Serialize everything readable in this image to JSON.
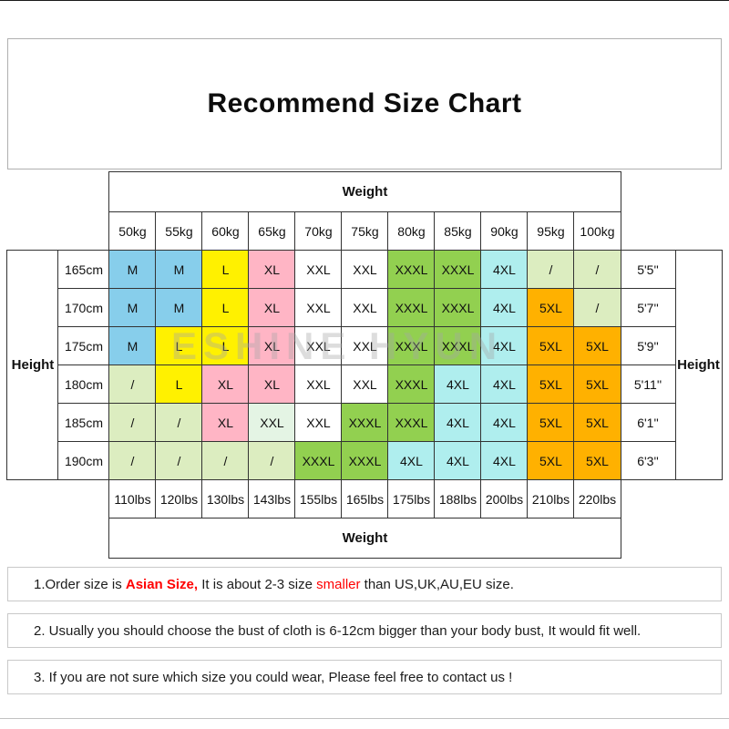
{
  "title": "Recommend Size Chart",
  "watermark": "ESHINE HYUN",
  "chart_data": {
    "type": "table",
    "title": "Recommend Size Chart",
    "weight_label": "Weight",
    "height_label": "Height",
    "columns_kg": [
      "50kg",
      "55kg",
      "60kg",
      "65kg",
      "70kg",
      "75kg",
      "80kg",
      "85kg",
      "90kg",
      "95kg",
      "100kg"
    ],
    "columns_lbs": [
      "110lbs",
      "120lbs",
      "130lbs",
      "143lbs",
      "155lbs",
      "165lbs",
      "175lbs",
      "188lbs",
      "200lbs",
      "210lbs",
      "220lbs"
    ],
    "cell_colors": {
      "blue": "#87CEEB",
      "yellow": "#FFF100",
      "pink": "#FFB5C5",
      "white": "#FFFFFF",
      "green": "#92D050",
      "cyan": "#AFEEEE",
      "orange": "#FFB100",
      "palegreen": "#DCEDC0",
      "mint": "#E4F4E4"
    },
    "rows": [
      {
        "height_cm": "165cm",
        "height_ft": "5'5''",
        "cells": [
          {
            "label": "M",
            "color": "blue"
          },
          {
            "label": "M",
            "color": "blue"
          },
          {
            "label": "L",
            "color": "yellow"
          },
          {
            "label": "XL",
            "color": "pink"
          },
          {
            "label": "XXL",
            "color": "white"
          },
          {
            "label": "XXL",
            "color": "white"
          },
          {
            "label": "XXXL",
            "color": "green"
          },
          {
            "label": "XXXL",
            "color": "green"
          },
          {
            "label": "4XL",
            "color": "cyan"
          },
          {
            "label": "/",
            "color": "palegreen"
          },
          {
            "label": "/",
            "color": "palegreen"
          }
        ]
      },
      {
        "height_cm": "170cm",
        "height_ft": "5'7''",
        "cells": [
          {
            "label": "M",
            "color": "blue"
          },
          {
            "label": "M",
            "color": "blue"
          },
          {
            "label": "L",
            "color": "yellow"
          },
          {
            "label": "XL",
            "color": "pink"
          },
          {
            "label": "XXL",
            "color": "white"
          },
          {
            "label": "XXL",
            "color": "white"
          },
          {
            "label": "XXXL",
            "color": "green"
          },
          {
            "label": "XXXL",
            "color": "green"
          },
          {
            "label": "4XL",
            "color": "cyan"
          },
          {
            "label": "5XL",
            "color": "orange"
          },
          {
            "label": "/",
            "color": "palegreen"
          }
        ]
      },
      {
        "height_cm": "175cm",
        "height_ft": "5'9''",
        "cells": [
          {
            "label": "M",
            "color": "blue"
          },
          {
            "label": "L",
            "color": "yellow"
          },
          {
            "label": "L",
            "color": "yellow"
          },
          {
            "label": "XL",
            "color": "pink"
          },
          {
            "label": "XXL",
            "color": "white"
          },
          {
            "label": "XXL",
            "color": "white"
          },
          {
            "label": "XXXL",
            "color": "green"
          },
          {
            "label": "XXXL",
            "color": "green"
          },
          {
            "label": "4XL",
            "color": "cyan"
          },
          {
            "label": "5XL",
            "color": "orange"
          },
          {
            "label": "5XL",
            "color": "orange"
          }
        ]
      },
      {
        "height_cm": "180cm",
        "height_ft": "5'11''",
        "cells": [
          {
            "label": "/",
            "color": "palegreen"
          },
          {
            "label": "L",
            "color": "yellow"
          },
          {
            "label": "XL",
            "color": "pink"
          },
          {
            "label": "XL",
            "color": "pink"
          },
          {
            "label": "XXL",
            "color": "white"
          },
          {
            "label": "XXL",
            "color": "white"
          },
          {
            "label": "XXXL",
            "color": "green"
          },
          {
            "label": "4XL",
            "color": "cyan"
          },
          {
            "label": "4XL",
            "color": "cyan"
          },
          {
            "label": "5XL",
            "color": "orange"
          },
          {
            "label": "5XL",
            "color": "orange"
          }
        ]
      },
      {
        "height_cm": "185cm",
        "height_ft": "6'1''",
        "cells": [
          {
            "label": "/",
            "color": "palegreen"
          },
          {
            "label": "/",
            "color": "palegreen"
          },
          {
            "label": "XL",
            "color": "pink"
          },
          {
            "label": "XXL",
            "color": "mint"
          },
          {
            "label": "XXL",
            "color": "white"
          },
          {
            "label": "XXXL",
            "color": "green"
          },
          {
            "label": "XXXL",
            "color": "green"
          },
          {
            "label": "4XL",
            "color": "cyan"
          },
          {
            "label": "4XL",
            "color": "cyan"
          },
          {
            "label": "5XL",
            "color": "orange"
          },
          {
            "label": "5XL",
            "color": "orange"
          }
        ]
      },
      {
        "height_cm": "190cm",
        "height_ft": "6'3''",
        "cells": [
          {
            "label": "/",
            "color": "palegreen"
          },
          {
            "label": "/",
            "color": "palegreen"
          },
          {
            "label": "/",
            "color": "palegreen"
          },
          {
            "label": "/",
            "color": "palegreen"
          },
          {
            "label": "XXXL",
            "color": "green"
          },
          {
            "label": "XXXL",
            "color": "green"
          },
          {
            "label": "4XL",
            "color": "cyan"
          },
          {
            "label": "4XL",
            "color": "cyan"
          },
          {
            "label": "4XL",
            "color": "cyan"
          },
          {
            "label": "5XL",
            "color": "orange"
          },
          {
            "label": "5XL",
            "color": "orange"
          }
        ]
      }
    ]
  },
  "notes": [
    {
      "segments": [
        {
          "text": "1.Order size is ",
          "style": "normal"
        },
        {
          "text": "Asian Size,",
          "style": "red-bold"
        },
        {
          "text": " It is about 2-3 size ",
          "style": "normal"
        },
        {
          "text": "smaller",
          "style": "red"
        },
        {
          "text": " than US,UK,AU,EU size.",
          "style": "normal"
        }
      ]
    },
    {
      "segments": [
        {
          "text": "2. Usually you should choose the bust of cloth is 6-12cm bigger than your body bust, It would fit well.",
          "style": "normal"
        }
      ]
    },
    {
      "segments": [
        {
          "text": "3. If you are not sure which size you could wear, Please feel free to contact us !",
          "style": "normal"
        }
      ]
    }
  ]
}
